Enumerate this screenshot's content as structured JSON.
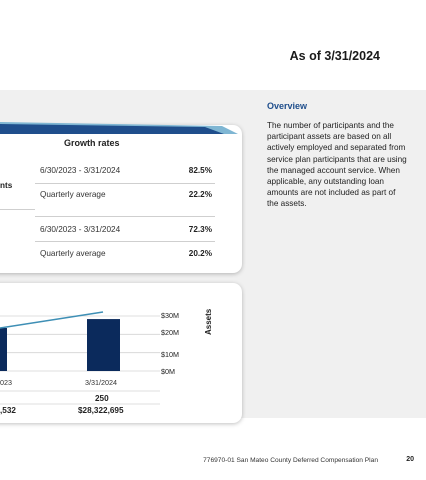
{
  "header": {
    "as_of": "As of 3/31/2024"
  },
  "growth": {
    "title": "Growth rates",
    "participants_label_partial": "nts",
    "rows": [
      {
        "period": "6/30/2023 - 3/31/2024",
        "value": "82.5%"
      },
      {
        "period": "Quarterly average",
        "value": "22.2%"
      },
      {
        "period": "6/30/2023 - 3/31/2024",
        "value": "72.3%"
      },
      {
        "period": "Quarterly average",
        "value": "20.2%"
      }
    ]
  },
  "overview": {
    "title": "Overview",
    "text": "The number of participants and the participant assets are based on all actively employed and separated from service plan participants that are using the managed account service. When applicable, any outstanding loan amounts are not included as part of the assets."
  },
  "chart_data": {
    "type": "bar",
    "categories": [
      "…023",
      "3/31/2024"
    ],
    "series": [
      {
        "name": "",
        "type": "bar",
        "values": [
          null,
          28322695
        ]
      },
      {
        "name": "",
        "type": "line",
        "values": [
          null,
          250
        ]
      }
    ],
    "ylabel": "Assets",
    "yticks": [
      "$30M",
      "$20M",
      "$10M",
      "$0M"
    ],
    "ylim": [
      0,
      30000000
    ],
    "data_labels": [
      {
        "category": "3/31/2024",
        "count": "250",
        "amount": "$28,322,695"
      },
      {
        "category": "…023",
        "count": "",
        "amount": "…532"
      }
    ],
    "colors": {
      "bar": "#0b2a5c",
      "line": "#3e8fb5"
    }
  },
  "chart_text": {
    "x_left": "023",
    "x_right": "3/31/2024",
    "count_right": "250",
    "amount_left": ",532",
    "amount_right": "$28,322,695"
  },
  "footer": {
    "text": "776970-01 San Mateo County Deferred Compensation Plan",
    "page": "20"
  }
}
